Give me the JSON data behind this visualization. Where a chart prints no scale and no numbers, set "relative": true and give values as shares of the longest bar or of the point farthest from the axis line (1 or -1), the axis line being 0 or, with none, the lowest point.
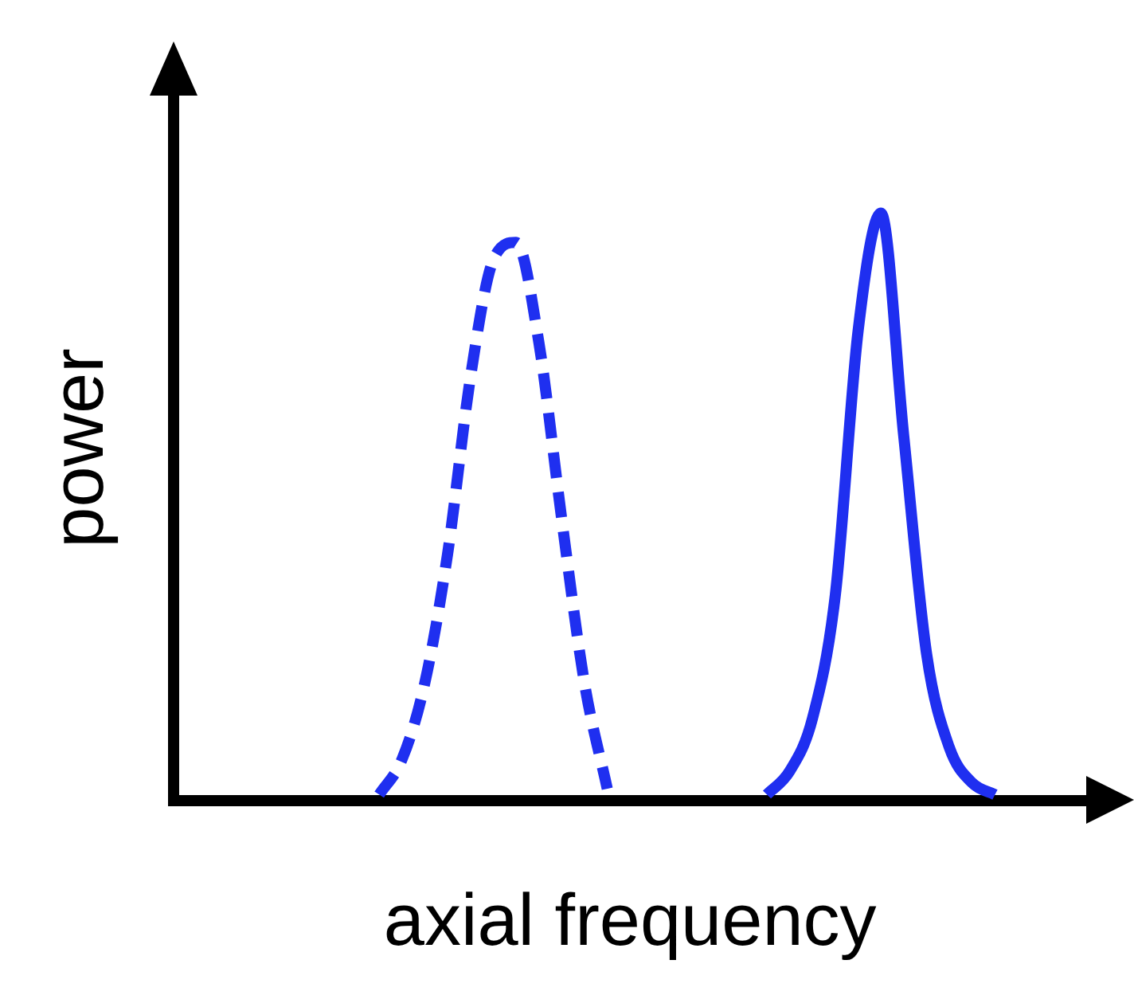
{
  "chart_data": {
    "type": "line",
    "relative": true,
    "xlabel": "axial frequency",
    "ylabel": "power",
    "grid": false,
    "legend": false,
    "marker": "none",
    "categories": [
      null,
      null,
      null,
      null,
      null,
      null,
      null,
      null,
      null,
      null,
      null,
      null,
      null,
      null,
      null,
      null,
      null,
      null,
      null,
      null,
      null,
      null,
      null,
      null,
      null,
      null,
      null,
      null,
      null,
      null,
      null,
      null,
      null,
      null,
      null,
      null,
      null,
      null,
      null,
      null,
      null
    ],
    "series": [
      {
        "color": "#1f2ff0",
        "line_style": "dashed",
        "values": [
          null,
          null,
          null,
          null,
          null,
          null,
          null,
          null,
          null,
          0.01,
          0.07,
          0.2,
          0.42,
          0.72,
          0.92,
          0.95,
          0.78,
          0.48,
          0.2,
          0.02,
          null,
          null,
          null,
          null,
          null,
          null,
          null,
          null,
          null,
          null,
          null,
          null,
          null,
          null,
          null,
          null,
          null,
          null,
          null,
          null,
          null
        ]
      },
      {
        "color": "#1f2ff0",
        "line_style": "solid",
        "values": [
          null,
          null,
          null,
          null,
          null,
          null,
          null,
          null,
          null,
          null,
          null,
          null,
          null,
          null,
          null,
          null,
          null,
          null,
          null,
          null,
          null,
          null,
          null,
          null,
          null,
          null,
          0.01,
          0.05,
          0.14,
          0.35,
          0.8,
          1.0,
          0.62,
          0.25,
          0.09,
          0.03,
          0.01,
          null,
          null,
          null,
          null
        ]
      }
    ]
  }
}
